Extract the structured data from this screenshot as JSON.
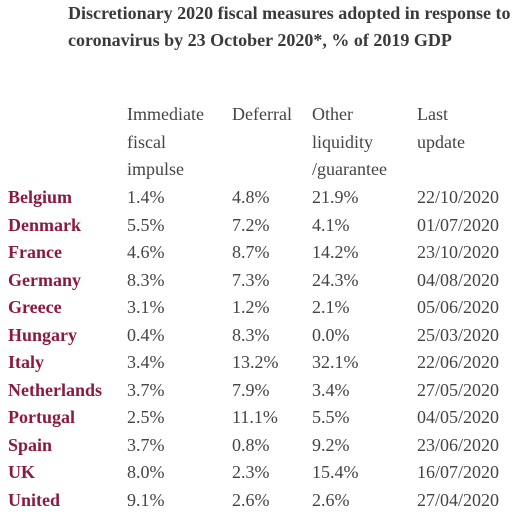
{
  "title": "Discretionary 2020 fiscal measures adopted in response to coronavirus by 23 October 2020*, % of 2019 GDP",
  "table": {
    "header": [
      [
        "Immediate",
        "fiscal",
        "impulse"
      ],
      [
        "Deferral"
      ],
      [
        "Other",
        "liquidity",
        "/guarantee"
      ],
      [
        "Last",
        "update"
      ]
    ],
    "rows": [
      [
        "Belgium",
        "1.4%",
        "4.8%",
        "21.9%",
        "22/10/2020"
      ],
      [
        "Denmark",
        "5.5%",
        "7.2%",
        "4.1%",
        "01/07/2020"
      ],
      [
        "France",
        "4.6%",
        "8.7%",
        "14.2%",
        "23/10/2020"
      ],
      [
        "Germany",
        "8.3%",
        "7.3%",
        "24.3%",
        "04/08/2020"
      ],
      [
        "Greece",
        "3.1%",
        "1.2%",
        "2.1%",
        "05/06/2020"
      ],
      [
        "Hungary",
        "0.4%",
        "8.3%",
        "0.0%",
        "25/03/2020"
      ],
      [
        "Italy",
        "3.4%",
        "13.2%",
        "32.1%",
        "22/06/2020"
      ],
      [
        "Netherlands",
        "3.7%",
        "7.9%",
        "3.4%",
        "27/05/2020"
      ],
      [
        "Portugal",
        "2.5%",
        "11.1%",
        "5.5%",
        "04/05/2020"
      ],
      [
        "Spain",
        "3.7%",
        "0.8%",
        "9.2%",
        "23/06/2020"
      ],
      [
        "UK",
        "8.0%",
        "2.3%",
        "15.4%",
        "16/07/2020"
      ],
      [
        "United",
        "9.1%",
        "2.6%",
        "2.6%",
        "27/04/2020"
      ]
    ]
  }
}
